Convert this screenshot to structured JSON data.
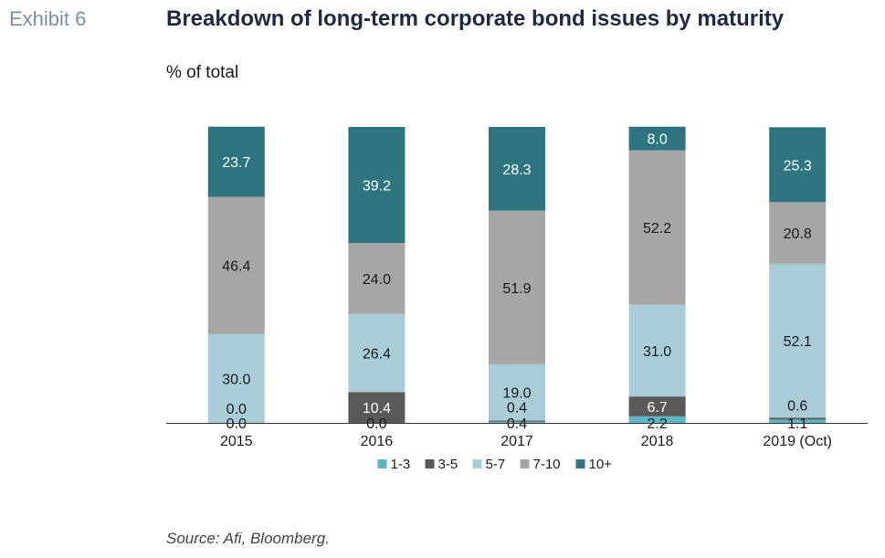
{
  "header": {
    "exhibit": "Exhibit 6",
    "title": "Breakdown of long-term corporate bond issues by maturity",
    "unit": "% of total"
  },
  "footer": {
    "source": "Source: Afi, Bloomberg."
  },
  "chart_data": {
    "type": "bar",
    "stacked": true,
    "categories": [
      "2015",
      "2016",
      "2017",
      "2018",
      "2019 (Oct)"
    ],
    "ylim": [
      0,
      100
    ],
    "ylabel": "% of total",
    "grid": false,
    "legend_position": "bottom-center",
    "series": [
      {
        "name": "1-3",
        "color": "#5bb7c3",
        "values": [
          0.0,
          0.0,
          0.4,
          2.2,
          1.1
        ],
        "labels": [
          "0.0",
          "0.0",
          "0.4",
          "2.2",
          "1.1"
        ]
      },
      {
        "name": "3-5",
        "color": "#595959",
        "values": [
          0.0,
          10.4,
          0.4,
          6.7,
          0.6
        ],
        "labels": [
          "0.0",
          "10.4",
          "0.4",
          "6.7",
          "0.6"
        ]
      },
      {
        "name": "5-7",
        "color": "#a9cdd7",
        "values": [
          30.0,
          26.4,
          19.0,
          31.0,
          52.1
        ],
        "labels": [
          "30.0",
          "26.4",
          "19.0",
          "31.0",
          "52.1"
        ]
      },
      {
        "name": "7-10",
        "color": "#a6a6a6",
        "values": [
          46.4,
          24.0,
          51.9,
          52.2,
          20.8
        ],
        "labels": [
          "46.4",
          "24.0",
          "51.9",
          "52.2",
          "20.8"
        ]
      },
      {
        "name": "10+",
        "color": "#2e7580",
        "values": [
          23.7,
          39.2,
          28.3,
          8.0,
          25.3
        ],
        "labels": [
          "23.7",
          "39.2",
          "28.3",
          "8.0",
          "25.3"
        ]
      }
    ]
  }
}
